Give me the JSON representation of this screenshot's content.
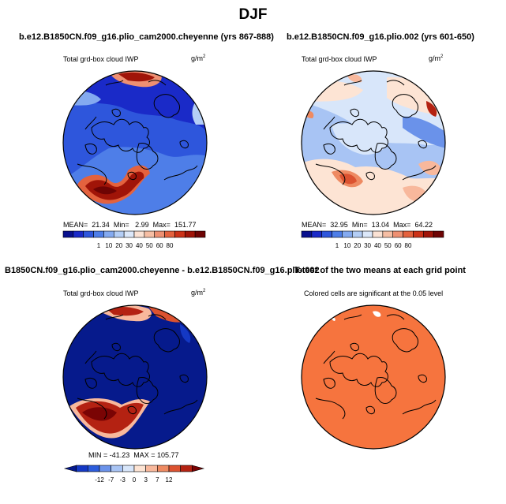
{
  "title": "DJF",
  "colors": {
    "levels_a": [
      "#08108e",
      "#1a2ac8",
      "#2e56dc",
      "#4e7ee8",
      "#84aaf0",
      "#b4cef6",
      "#dce8fa",
      "#fbe2d4",
      "#f6bea4",
      "#ee9072",
      "#e4623e",
      "#cc3218",
      "#a01408",
      "#6e0404"
    ],
    "levels_b": [
      "#061a8c",
      "#1438c4",
      "#2c5cdc",
      "#6a92ea",
      "#a8c4f4",
      "#d8e6fa",
      "#fde4d4",
      "#f8b89c",
      "#ee8a62",
      "#dc5230",
      "#b42212",
      "#7a0404"
    ],
    "fill_orange": "#f6743e"
  },
  "chart_data": [
    {
      "type": "heatmap",
      "title": "b.e12.B1850CN.f09_g16.plio_cam2000.cheyenne (yrs 867-888)",
      "subtitle": "Total grd-box cloud IWP",
      "units": "g/m",
      "units_sup": "2",
      "stats": {
        "mean_label": "MEAN=",
        "mean": "21.34",
        "min_label": "Min=",
        "min": "2.99",
        "max_label": "Max=",
        "max": "151.77"
      },
      "colorbar_ticks": [
        "1",
        "10",
        "20",
        "30",
        "40",
        "50",
        "60",
        "80"
      ]
    },
    {
      "type": "heatmap",
      "title": "b.e12.B1850CN.f09_g16.plio.002 (yrs 601-650)",
      "subtitle": "Total grd-box cloud IWP",
      "units": "g/m",
      "units_sup": "2",
      "stats": {
        "mean_label": "MEAN=",
        "mean": "32.95",
        "min_label": "Min=",
        "min": "13.04",
        "max_label": "Max=",
        "max": "64.22"
      },
      "colorbar_ticks": [
        "1",
        "10",
        "20",
        "30",
        "40",
        "50",
        "60",
        "80"
      ]
    },
    {
      "type": "heatmap",
      "title": "B1850CN.f09_g16.plio_cam2000.cheyenne - b.e12.B1850CN.f09_g16.plio.002",
      "subtitle": "Total grd-box cloud IWP",
      "units": "g/m",
      "units_sup": "2",
      "stats": {
        "line": "MIN = -41.23  MAX = 105.77"
      },
      "colorbar_ticks": [
        "-12",
        "-7",
        "-3",
        "0",
        "3",
        "7",
        "12"
      ]
    },
    {
      "type": "heatmap",
      "title": "T-test of the two means at each grid point",
      "subtitle": "Colored cells are significant at the 0.05 level"
    }
  ]
}
